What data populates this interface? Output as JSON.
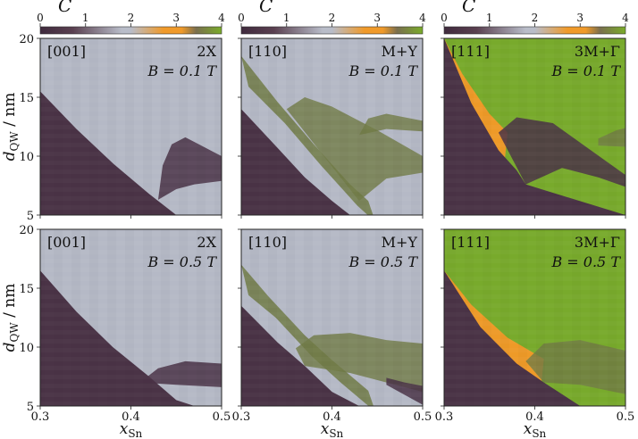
{
  "figure": {
    "colorbar": {
      "symbol": "C",
      "ticks": [
        "0",
        "1",
        "2",
        "3",
        "4"
      ],
      "range": [
        0,
        4
      ],
      "colors": [
        "#3f2a3d",
        "#5e4650",
        "#b9bdc9",
        "#f09a2a",
        "#7aac2a"
      ]
    },
    "ylabel": {
      "main": "d",
      "sub": "QW",
      "unit": " / nm"
    },
    "xlabel": {
      "main": "x",
      "sub": "Sn"
    },
    "colors": {
      "c0": "#4a3346",
      "c1": "#707a45",
      "c2": "#b5b9c6",
      "c3": "#ee9a28",
      "c4": "#78aa2c"
    }
  },
  "chart_data": {
    "type": "heatmap",
    "title": "",
    "xlabel": "x_Sn",
    "ylabel": "d_QW / nm",
    "xlim": [
      0.3,
      0.5
    ],
    "ylim": [
      5,
      20
    ],
    "xticks": [
      "0.3",
      "0.4",
      "0.5"
    ],
    "yticks": [
      "5",
      "10",
      "15",
      "20"
    ],
    "colorbar_label": "C",
    "colorbar_range": [
      0,
      4
    ],
    "panels": [
      {
        "direction": "[001]",
        "valley": "2X",
        "field": "B = 0.1 T",
        "background": 2,
        "regions": [
          {
            "chern": 0,
            "upper": [
              [
                0.3,
                15.5
              ],
              [
                0.34,
                12.3
              ],
              [
                0.38,
                9.4
              ],
              [
                0.42,
                6.8
              ],
              [
                0.45,
                5.0
              ]
            ]
          },
          {
            "chern": 0,
            "lobe": [
              [
                0.43,
                6.3
              ],
              [
                0.435,
                9.2
              ],
              [
                0.445,
                11.0
              ],
              [
                0.46,
                11.6
              ],
              [
                0.475,
                11.0
              ],
              [
                0.49,
                10.4
              ],
              [
                0.5,
                10.0
              ]
            ],
            "lower": [
              [
                0.43,
                6.3
              ],
              [
                0.45,
                7.2
              ],
              [
                0.47,
                7.6
              ],
              [
                0.5,
                7.9
              ]
            ]
          }
        ]
      },
      {
        "direction": "[110]",
        "valley": "M+Y",
        "field": "B = 0.1 T",
        "background": 2,
        "regions": [
          {
            "chern": 0,
            "upper": [
              [
                0.3,
                14.0
              ],
              [
                0.34,
                10.7
              ],
              [
                0.37,
                8.2
              ],
              [
                0.4,
                6.2
              ],
              [
                0.42,
                5.0
              ]
            ]
          },
          {
            "chern": 1,
            "band": [
              [
                0.3,
                18.5
              ],
              [
                0.34,
                14.6
              ],
              [
                0.38,
                11.0
              ],
              [
                0.42,
                7.6
              ],
              [
                0.44,
                6.2
              ]
            ]
          },
          {
            "chern": 1,
            "lobe": [
              [
                0.35,
                14.0
              ],
              [
                0.37,
                15.0
              ],
              [
                0.4,
                14.2
              ],
              [
                0.45,
                12.2
              ],
              [
                0.5,
                10.0
              ]
            ],
            "lower": [
              [
                0.43,
                6.2
              ],
              [
                0.46,
                8.1
              ],
              [
                0.5,
                8.6
              ]
            ]
          },
          {
            "chern": 1,
            "lobe": [
              [
                0.43,
                11.8
              ],
              [
                0.44,
                13.2
              ],
              [
                0.46,
                13.6
              ],
              [
                0.5,
                13.0
              ]
            ],
            "lower": [
              [
                0.43,
                11.8
              ],
              [
                0.46,
                12.3
              ],
              [
                0.5,
                12.1
              ]
            ]
          }
        ]
      },
      {
        "direction": "[111]",
        "valley": "3M+Γ",
        "field": "B = 0.1 T",
        "background": 4,
        "regions": [
          {
            "chern": 3,
            "wedge": [
              [
                0.3,
                20.0
              ],
              [
                0.32,
                17.0
              ],
              [
                0.35,
                13.6
              ],
              [
                0.37,
                12.0
              ]
            ]
          },
          {
            "chern": 0,
            "lower_region": [
              [
                0.3,
                20.0
              ],
              [
                0.33,
                14.5
              ],
              [
                0.36,
                10.5
              ],
              [
                0.38,
                8.8
              ],
              [
                0.39,
                7.6
              ]
            ]
          },
          {
            "chern": 0,
            "lobe": [
              [
                0.36,
                12.0
              ],
              [
                0.38,
                13.3
              ],
              [
                0.42,
                12.8
              ],
              [
                0.46,
                10.6
              ],
              [
                0.5,
                8.4
              ]
            ],
            "lower": [
              [
                0.39,
                7.6
              ],
              [
                0.43,
                9.0
              ],
              [
                0.47,
                8.2
              ],
              [
                0.5,
                7.4
              ]
            ]
          },
          {
            "chern": 1,
            "lobe": [
              [
                0.47,
                11.5
              ],
              [
                0.49,
                12.2
              ],
              [
                0.5,
                12.4
              ]
            ]
          }
        ]
      },
      {
        "direction": "[001]",
        "valley": "2X",
        "field": "B = 0.5 T",
        "background": 2,
        "regions": [
          {
            "chern": 0,
            "upper": [
              [
                0.3,
                16.5
              ],
              [
                0.34,
                13.0
              ],
              [
                0.38,
                10.0
              ],
              [
                0.42,
                7.5
              ],
              [
                0.45,
                5.5
              ],
              [
                0.47,
                5.0
              ]
            ]
          },
          {
            "chern": 0,
            "lobe": [
              [
                0.41,
                7.0
              ],
              [
                0.43,
                8.2
              ],
              [
                0.46,
                8.8
              ],
              [
                0.5,
                8.6
              ]
            ],
            "lower": [
              [
                0.41,
                7.0
              ],
              [
                0.45,
                6.8
              ],
              [
                0.5,
                6.6
              ]
            ]
          }
        ]
      },
      {
        "direction": "[110]",
        "valley": "M+Y",
        "field": "B = 0.5 T",
        "background": 2,
        "regions": [
          {
            "chern": 0,
            "upper": [
              [
                0.3,
                13.5
              ],
              [
                0.34,
                10.4
              ],
              [
                0.37,
                8.4
              ],
              [
                0.4,
                6.2
              ],
              [
                0.43,
                5.0
              ]
            ]
          },
          {
            "chern": 1,
            "band": [
              [
                0.3,
                17.0
              ],
              [
                0.33,
                14.3
              ],
              [
                0.37,
                11.0
              ],
              [
                0.4,
                8.9
              ],
              [
                0.44,
                6.3
              ]
            ]
          },
          {
            "chern": 1,
            "lobe": [
              [
                0.36,
                9.9
              ],
              [
                0.38,
                11.0
              ],
              [
                0.42,
                11.2
              ],
              [
                0.46,
                10.6
              ],
              [
                0.5,
                10.3
              ]
            ],
            "lower": [
              [
                0.37,
                8.4
              ],
              [
                0.42,
                7.8
              ],
              [
                0.46,
                7.0
              ],
              [
                0.5,
                6.2
              ]
            ]
          },
          {
            "chern": 0,
            "lobe": [
              [
                0.46,
                7.4
              ],
              [
                0.48,
                7.0
              ],
              [
                0.5,
                6.7
              ]
            ]
          }
        ]
      },
      {
        "direction": "[111]",
        "valley": "3M+Γ",
        "field": "B = 0.5 T",
        "background": 4,
        "regions": [
          {
            "chern": 3,
            "wedge": [
              [
                0.3,
                16.5
              ],
              [
                0.33,
                13.6
              ],
              [
                0.37,
                10.8
              ],
              [
                0.41,
                9.0
              ]
            ]
          },
          {
            "chern": 0,
            "lower_region": [
              [
                0.3,
                16.5
              ],
              [
                0.34,
                11.7
              ],
              [
                0.38,
                8.6
              ],
              [
                0.41,
                7.0
              ],
              [
                0.45,
                5.0
              ]
            ]
          },
          {
            "chern": 1,
            "lobe": [
              [
                0.39,
                8.8
              ],
              [
                0.41,
                10.3
              ],
              [
                0.45,
                10.6
              ],
              [
                0.5,
                9.7
              ]
            ],
            "lower": [
              [
                0.41,
                7.0
              ],
              [
                0.45,
                6.8
              ],
              [
                0.5,
                6.0
              ]
            ]
          }
        ]
      }
    ]
  }
}
